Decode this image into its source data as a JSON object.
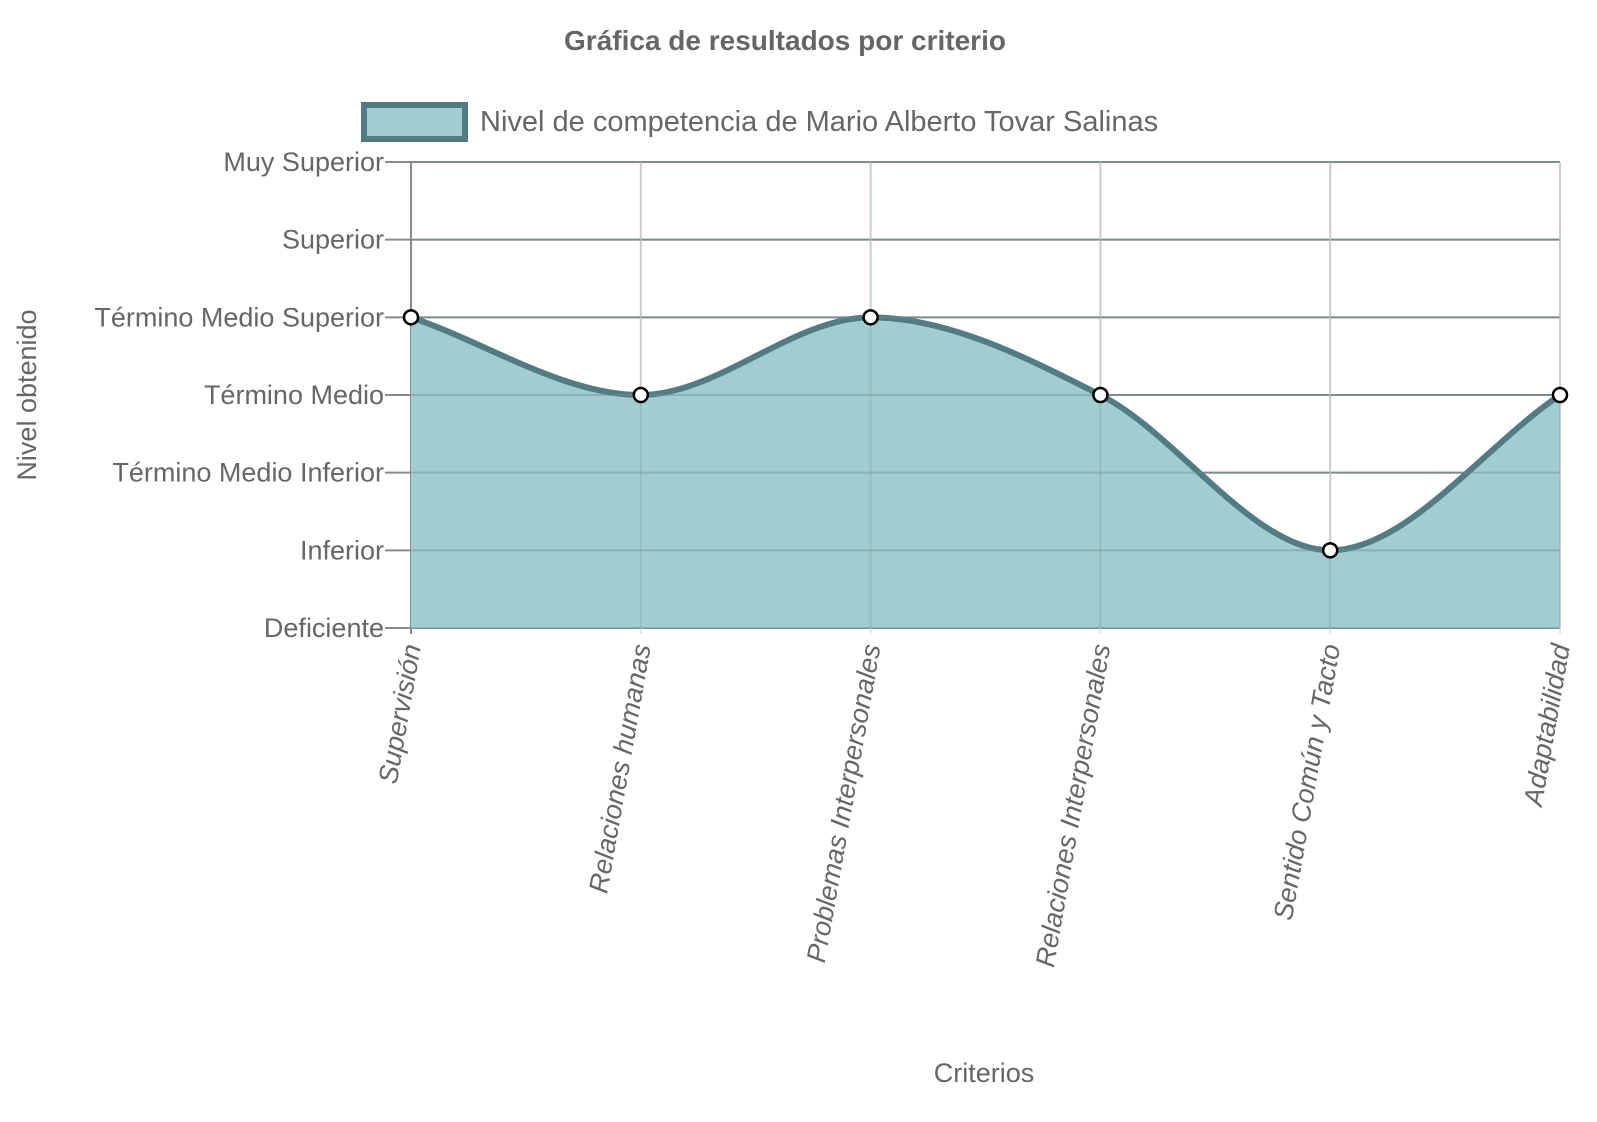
{
  "chart_data": {
    "type": "area",
    "title": "Gráfica de resultados por criterio",
    "xlabel": "Criterios",
    "ylabel": "Nivel obtenido",
    "categories": [
      "Supervisión",
      "Relaciones humanas",
      "Problemas Interpersonales",
      "Relaciones Interpersonales",
      "Sentido Común y Tacto",
      "Adaptabilidad"
    ],
    "y_levels": [
      "Deficiente",
      "Inferior",
      "Término Medio Inferior",
      "Término Medio",
      "Término Medio Superior",
      "Superior",
      "Muy Superior"
    ],
    "ylim": [
      0,
      6
    ],
    "series": [
      {
        "name": "Nivel de competencia de Mario Alberto Tovar Salinas",
        "values": [
          4,
          3,
          4,
          3,
          1,
          3
        ],
        "fill_color": "#a2cdd0",
        "line_color": "#527b83"
      }
    ],
    "grid": true,
    "legend_position": "top",
    "smooth": true
  }
}
